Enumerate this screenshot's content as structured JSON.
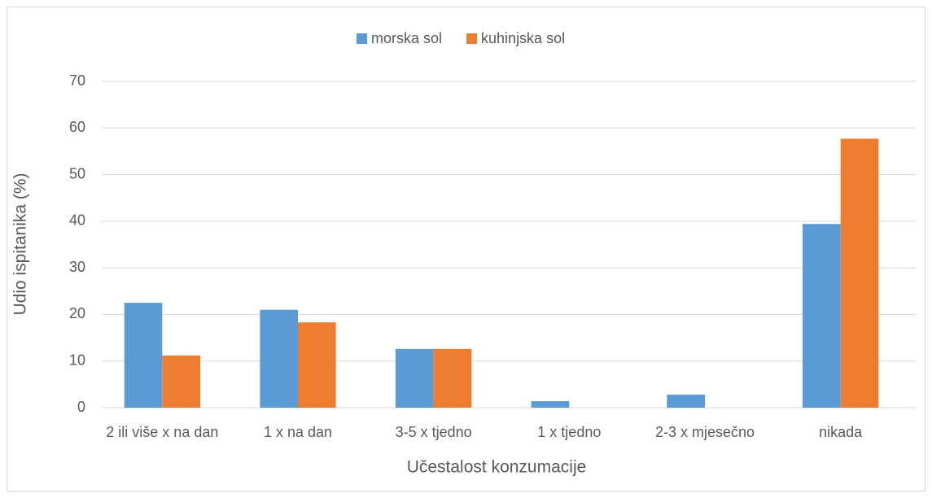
{
  "chart_data": {
    "type": "bar",
    "categories": [
      "2 ili više x na dan",
      "1 x na dan",
      "3-5 x tjedno",
      "1 x tjedno",
      "2-3 x mjesečno",
      "nikada"
    ],
    "series": [
      {
        "name": "morska sol",
        "color": "#5b9bd5",
        "values": [
          22.5,
          21,
          12.6,
          1.4,
          2.8,
          39.4
        ]
      },
      {
        "name": "kuhinjska sol",
        "color": "#ed7d31",
        "values": [
          11.2,
          18.3,
          12.6,
          0,
          0,
          57.7
        ]
      }
    ],
    "ylim": [
      0,
      70
    ],
    "yticks": [
      0,
      10,
      20,
      30,
      40,
      50,
      60,
      70
    ],
    "grid": true,
    "xlabel": "Učestalost konzumacije",
    "ylabel": "Udio ispitanika (%)",
    "legend": "top"
  }
}
